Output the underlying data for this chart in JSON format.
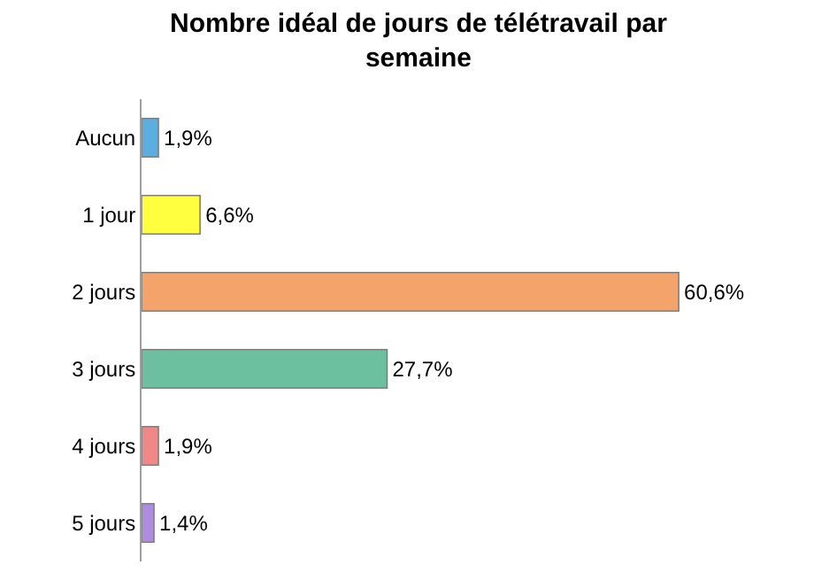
{
  "chart_data": {
    "type": "bar",
    "orientation": "horizontal",
    "title": "Nombre idéal de jours de télétravail par semaine",
    "categories": [
      "Aucun",
      "1 jour",
      "2 jours",
      "3 jours",
      "4 jours",
      "5 jours"
    ],
    "values": [
      1.9,
      6.6,
      60.6,
      27.7,
      1.9,
      1.4
    ],
    "value_labels": [
      "1,9%",
      "6,6%",
      "60,6%",
      "27,7%",
      "1,9%",
      "1,4%"
    ],
    "colors": [
      "#5aaee0",
      "#ffff40",
      "#f4a46a",
      "#6cc0a0",
      "#f08888",
      "#b08ce0"
    ],
    "legend": false
  }
}
